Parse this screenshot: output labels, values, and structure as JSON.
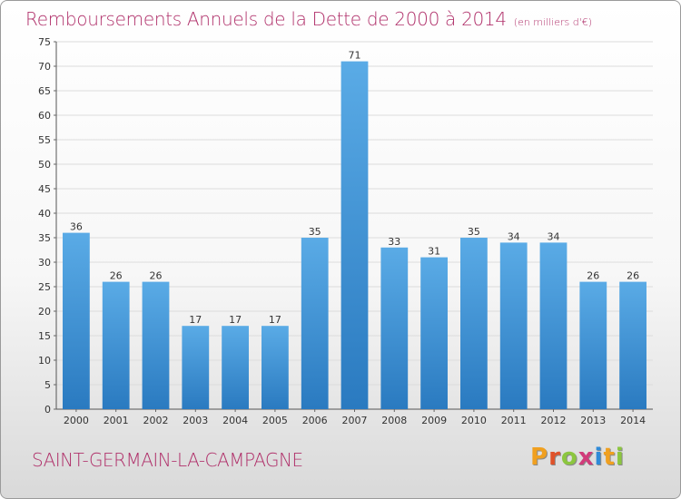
{
  "header": {
    "title": "Remboursements Annuels de la Dette de 2000 à 2014",
    "unit": "(en milliers d'€)"
  },
  "footer": {
    "commune": "SAINT-GERMAIN-LA-CAMPAGNE",
    "logo_letters": [
      "P",
      "r",
      "o",
      "x",
      "i",
      "t",
      "i"
    ]
  },
  "colors": {
    "title": "#b0306a",
    "bar_light": "#5aabe6",
    "bar_dark": "#2a7ac0",
    "logo": [
      "#f0a020",
      "#e0522a",
      "#8cc63f",
      "#d13b7a",
      "#2f8ad8",
      "#f0a020",
      "#8cc63f"
    ]
  },
  "chart_data": {
    "type": "bar",
    "title": "Remboursements Annuels de la Dette de 2000 à 2014",
    "categories": [
      "2000",
      "2001",
      "2002",
      "2003",
      "2004",
      "2005",
      "2006",
      "2007",
      "2008",
      "2009",
      "2010",
      "2011",
      "2012",
      "2013",
      "2014"
    ],
    "values": [
      36,
      26,
      26,
      17,
      17,
      17,
      35,
      71,
      33,
      31,
      35,
      34,
      34,
      26,
      26
    ],
    "xlabel": "",
    "ylabel": "",
    "ylim": [
      0,
      75
    ],
    "yticks": [
      0,
      5,
      10,
      15,
      20,
      25,
      30,
      35,
      40,
      45,
      50,
      55,
      60,
      65,
      70,
      75
    ],
    "grid": true,
    "legend": "none"
  }
}
